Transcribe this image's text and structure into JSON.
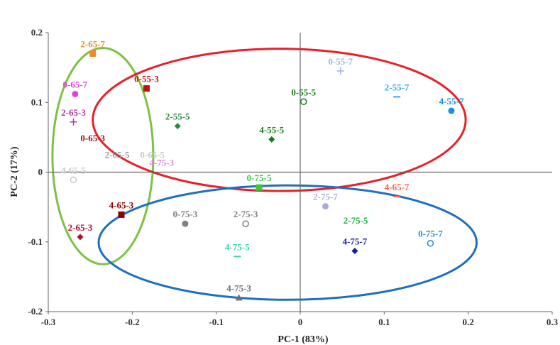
{
  "chart_data": {
    "type": "scatter",
    "title": "",
    "xlabel": "PC-1 (83%)",
    "ylabel": "PC-2 (17%)",
    "xlim": [
      -0.3,
      0.3
    ],
    "ylim": [
      -0.2,
      0.2
    ],
    "x_ticks": [
      "-0.3",
      "-0.2",
      "-0.1",
      "0",
      "0.1",
      "0.2",
      "0.3"
    ],
    "y_ticks": [
      "-0.2",
      "-0.1",
      "0",
      "0.1",
      "0.2"
    ],
    "grid": false,
    "points": [
      {
        "label": "2-65-7",
        "x": -0.247,
        "y": 0.17,
        "marker": "square",
        "color": "#f08a24"
      },
      {
        "label": "0-65-7",
        "x": -0.268,
        "y": 0.112,
        "marker": "circle",
        "color": "#e040e0"
      },
      {
        "label": "2-65-3",
        "x": -0.27,
        "y": 0.072,
        "marker": "plus",
        "color": "#b03a9e"
      },
      {
        "label": "0-65-3",
        "x": -0.247,
        "y": 0.035,
        "marker": "none",
        "color": "#8b1a1a"
      },
      {
        "label": "4-65-5",
        "x": -0.27,
        "y": -0.011,
        "marker": "circle-open",
        "color": "#c8c8c8"
      },
      {
        "label": "2-65-5",
        "x": -0.218,
        "y": 0.011,
        "marker": "none",
        "color": "#9a9a9a"
      },
      {
        "label": "0-65-5",
        "x": -0.176,
        "y": 0.011,
        "marker": "none",
        "color": "#c8c8c8"
      },
      {
        "label": "4-65-3",
        "x": -0.213,
        "y": -0.061,
        "marker": "square",
        "color": "#8b0000"
      },
      {
        "label": "2-65-3",
        "x": -0.262,
        "y": -0.093,
        "marker": "diamond",
        "color": "#b01030"
      },
      {
        "label": "0-55-3",
        "x": -0.183,
        "y": 0.12,
        "marker": "square",
        "color": "#c01010"
      },
      {
        "label": "2-55-5",
        "x": -0.146,
        "y": 0.066,
        "marker": "diamond",
        "color": "#2e8b3e"
      },
      {
        "label": "0-55-5",
        "x": 0.004,
        "y": 0.101,
        "marker": "circle-open",
        "color": "#1a7a1a"
      },
      {
        "label": "4-55-5",
        "x": -0.034,
        "y": 0.047,
        "marker": "diamond",
        "color": "#1a7a1a"
      },
      {
        "label": "0-55-7",
        "x": 0.048,
        "y": 0.145,
        "marker": "plus",
        "color": "#9ab8d8"
      },
      {
        "label": "2-55-7",
        "x": 0.115,
        "y": 0.108,
        "marker": "dash",
        "color": "#3aa8e0"
      },
      {
        "label": "4-55-7",
        "x": 0.18,
        "y": 0.088,
        "marker": "circle",
        "color": "#1a90e0"
      },
      {
        "label": "4-75-3",
        "x": -0.165,
        "y": 0.0,
        "marker": "none",
        "color": "#d98ad9"
      },
      {
        "label": "0-75-5",
        "x": -0.049,
        "y": -0.022,
        "marker": "square",
        "color": "#33cc33"
      },
      {
        "label": "4-65-7",
        "x": 0.115,
        "y": -0.035,
        "marker": "dash",
        "color": "#ff6040"
      },
      {
        "label": "2-75-7",
        "x": 0.03,
        "y": -0.049,
        "marker": "circle",
        "color": "#aaaadd"
      },
      {
        "label": "0-75-3",
        "x": -0.137,
        "y": -0.074,
        "marker": "circle",
        "color": "#808080"
      },
      {
        "label": "2-75-3",
        "x": -0.065,
        "y": -0.074,
        "marker": "circle-open",
        "color": "#808080"
      },
      {
        "label": "2-75-5",
        "x": 0.066,
        "y": -0.083,
        "marker": "none",
        "color": "#20b040"
      },
      {
        "label": "4-75-7",
        "x": 0.065,
        "y": -0.113,
        "marker": "diamond",
        "color": "#1a1aaa"
      },
      {
        "label": "4-75-5",
        "x": -0.075,
        "y": -0.121,
        "marker": "dash",
        "color": "#33d8a0"
      },
      {
        "label": "0-75-7",
        "x": 0.155,
        "y": -0.102,
        "marker": "circle-open",
        "color": "#1a90d0"
      },
      {
        "label": "4-75-3",
        "x": -0.073,
        "y": -0.18,
        "marker": "triangle",
        "color": "#707070"
      }
    ],
    "ellipses": [
      {
        "color": "#7dc242",
        "cx": -0.235,
        "cy": 0.023,
        "rx": 0.06,
        "ry": 0.155
      },
      {
        "color": "#e8202a",
        "cx": -0.025,
        "cy": 0.075,
        "rx": 0.222,
        "ry": 0.102
      },
      {
        "color": "#1f6fc0",
        "cx": -0.015,
        "cy": -0.101,
        "rx": 0.225,
        "ry": 0.082
      }
    ]
  }
}
